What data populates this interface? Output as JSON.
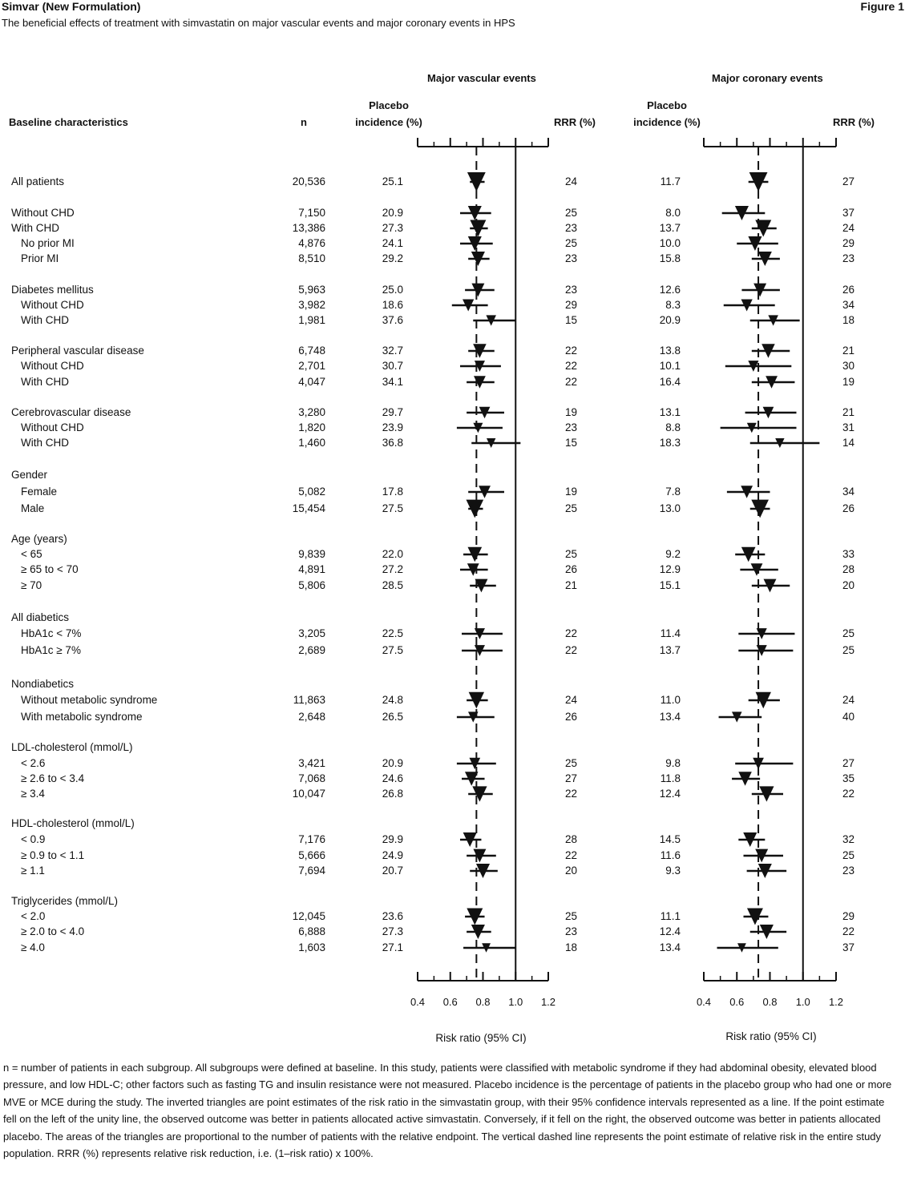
{
  "header": {
    "title": "Simvar (New Formulation)",
    "figure": "Figure 1",
    "subtitle": "The beneficial effects of treatment with simvastatin on major vascular events and major coronary events in HPS"
  },
  "columns": {
    "baseline": "Baseline characteristics",
    "n": "n",
    "placebo_line1": "Placebo",
    "placebo_line2": "incidence (%)",
    "rrr": "RRR (%)",
    "mve_title": "Major vascular events",
    "mce_title": "Major coronary events",
    "xlabel": "Risk ratio (95% CI)"
  },
  "chart_data": {
    "type": "forest",
    "x_ticks": [
      "0.4",
      "0.6",
      "0.8",
      "1.0",
      "1.2"
    ],
    "xlim": [
      0.4,
      1.2
    ],
    "reference_line": 1.0,
    "dashed_line": {
      "mve": 0.76,
      "mce": 0.73
    },
    "rows": [
      {
        "label": "All patients",
        "indent": 0,
        "n": "20,536",
        "mve": {
          "inc": "25.1",
          "rr": 0.76,
          "lo": 0.72,
          "hi": 0.81,
          "rrr": "24",
          "size": 3
        },
        "mce": {
          "inc": "11.7",
          "rr": 0.73,
          "lo": 0.67,
          "hi": 0.79,
          "rrr": "27",
          "size": 3
        }
      },
      {
        "label": "Without CHD",
        "indent": 0,
        "n": "7,150",
        "mve": {
          "inc": "20.9",
          "rr": 0.75,
          "lo": 0.66,
          "hi": 0.85,
          "rrr": "25",
          "size": 2
        },
        "mce": {
          "inc": "8.0",
          "rr": 0.63,
          "lo": 0.51,
          "hi": 0.77,
          "rrr": "37",
          "size": 2
        }
      },
      {
        "label": "With CHD",
        "indent": 0,
        "n": "13,386",
        "mve": {
          "inc": "27.3",
          "rr": 0.77,
          "lo": 0.72,
          "hi": 0.83,
          "rrr": "23",
          "size": 2.5
        },
        "mce": {
          "inc": "13.7",
          "rr": 0.76,
          "lo": 0.69,
          "hi": 0.84,
          "rrr": "24",
          "size": 2.5
        }
      },
      {
        "label": "No prior MI",
        "indent": 1,
        "n": "4,876",
        "mve": {
          "inc": "24.1",
          "rr": 0.75,
          "lo": 0.66,
          "hi": 0.86,
          "rrr": "25",
          "size": 2
        },
        "mce": {
          "inc": "10.0",
          "rr": 0.71,
          "lo": 0.6,
          "hi": 0.85,
          "rrr": "29",
          "size": 2
        }
      },
      {
        "label": "Prior MI",
        "indent": 1,
        "n": "8,510",
        "mve": {
          "inc": "29.2",
          "rr": 0.77,
          "lo": 0.71,
          "hi": 0.84,
          "rrr": "23",
          "size": 2
        },
        "mce": {
          "inc": "15.8",
          "rr": 0.77,
          "lo": 0.69,
          "hi": 0.86,
          "rrr": "23",
          "size": 2
        }
      },
      {
        "label": "Diabetes mellitus",
        "indent": 0,
        "n": "5,963",
        "mve": {
          "inc": "25.0",
          "rr": 0.77,
          "lo": 0.69,
          "hi": 0.87,
          "rrr": "23",
          "size": 1.8
        },
        "mce": {
          "inc": "12.6",
          "rr": 0.74,
          "lo": 0.63,
          "hi": 0.86,
          "rrr": "26",
          "size": 1.8
        }
      },
      {
        "label": "Without CHD",
        "indent": 1,
        "n": "3,982",
        "mve": {
          "inc": "18.6",
          "rr": 0.71,
          "lo": 0.61,
          "hi": 0.83,
          "rrr": "29",
          "size": 1.5
        },
        "mce": {
          "inc": "8.3",
          "rr": 0.66,
          "lo": 0.52,
          "hi": 0.83,
          "rrr": "34",
          "size": 1.5
        }
      },
      {
        "label": "With CHD",
        "indent": 1,
        "n": "1,981",
        "mve": {
          "inc": "37.6",
          "rr": 0.85,
          "lo": 0.74,
          "hi": 1.0,
          "rrr": "15",
          "size": 1.2
        },
        "mce": {
          "inc": "20.9",
          "rr": 0.82,
          "lo": 0.68,
          "hi": 0.98,
          "rrr": "18",
          "size": 1.2
        }
      },
      {
        "label": "Peripheral vascular disease",
        "indent": 0,
        "n": "6,748",
        "mve": {
          "inc": "32.7",
          "rr": 0.78,
          "lo": 0.71,
          "hi": 0.87,
          "rrr": "22",
          "size": 1.9
        },
        "mce": {
          "inc": "13.8",
          "rr": 0.79,
          "lo": 0.69,
          "hi": 0.92,
          "rrr": "21",
          "size": 1.9
        }
      },
      {
        "label": "Without CHD",
        "indent": 1,
        "n": "2,701",
        "mve": {
          "inc": "30.7",
          "rr": 0.78,
          "lo": 0.66,
          "hi": 0.91,
          "rrr": "22",
          "size": 1.3
        },
        "mce": {
          "inc": "10.1",
          "rr": 0.7,
          "lo": 0.53,
          "hi": 0.93,
          "rrr": "30",
          "size": 1.3
        }
      },
      {
        "label": "With CHD",
        "indent": 1,
        "n": "4,047",
        "mve": {
          "inc": "34.1",
          "rr": 0.78,
          "lo": 0.7,
          "hi": 0.87,
          "rrr": "22",
          "size": 1.6
        },
        "mce": {
          "inc": "16.4",
          "rr": 0.81,
          "lo": 0.69,
          "hi": 0.95,
          "rrr": "19",
          "size": 1.6
        }
      },
      {
        "label": "Cerebrovascular disease",
        "indent": 0,
        "n": "3,280",
        "mve": {
          "inc": "29.7",
          "rr": 0.81,
          "lo": 0.7,
          "hi": 0.93,
          "rrr": "19",
          "size": 1.4
        },
        "mce": {
          "inc": "13.1",
          "rr": 0.79,
          "lo": 0.65,
          "hi": 0.96,
          "rrr": "21",
          "size": 1.4
        }
      },
      {
        "label": "Without CHD",
        "indent": 1,
        "n": "1,820",
        "mve": {
          "inc": "23.9",
          "rr": 0.77,
          "lo": 0.64,
          "hi": 0.92,
          "rrr": "23",
          "size": 1.1
        },
        "mce": {
          "inc": "8.8",
          "rr": 0.69,
          "lo": 0.5,
          "hi": 0.96,
          "rrr": "31",
          "size": 1.1
        }
      },
      {
        "label": "With CHD",
        "indent": 1,
        "n": "1,460",
        "mve": {
          "inc": "36.8",
          "rr": 0.85,
          "lo": 0.73,
          "hi": 1.03,
          "rrr": "15",
          "size": 1.0
        },
        "mce": {
          "inc": "18.3",
          "rr": 0.86,
          "lo": 0.68,
          "hi": 1.1,
          "rrr": "14",
          "size": 1.0
        }
      },
      {
        "label": "Gender",
        "indent": 0,
        "header": true
      },
      {
        "label": "Female",
        "indent": 1,
        "n": "5,082",
        "mve": {
          "inc": "17.8",
          "rr": 0.81,
          "lo": 0.71,
          "hi": 0.93,
          "rrr": "19",
          "size": 1.6
        },
        "mce": {
          "inc": "7.8",
          "rr": 0.66,
          "lo": 0.54,
          "hi": 0.8,
          "rrr": "34",
          "size": 1.6
        }
      },
      {
        "label": "Male",
        "indent": 1,
        "n": "15,454",
        "mve": {
          "inc": "27.5",
          "rr": 0.75,
          "lo": 0.71,
          "hi": 0.8,
          "rrr": "25",
          "size": 2.8
        },
        "mce": {
          "inc": "13.0",
          "rr": 0.74,
          "lo": 0.68,
          "hi": 0.8,
          "rrr": "26",
          "size": 2.8
        }
      },
      {
        "label": "Age (years)",
        "indent": 0,
        "header": true
      },
      {
        "label": "< 65",
        "indent": 1,
        "n": "9,839",
        "mve": {
          "inc": "22.0",
          "rr": 0.75,
          "lo": 0.68,
          "hi": 0.83,
          "rrr": "25",
          "size": 2.1
        },
        "mce": {
          "inc": "9.2",
          "rr": 0.67,
          "lo": 0.59,
          "hi": 0.77,
          "rrr": "33",
          "size": 2.1
        }
      },
      {
        "label": "≥ 65 to < 70",
        "indent": 1,
        "n": "4,891",
        "mve": {
          "inc": "27.2",
          "rr": 0.74,
          "lo": 0.66,
          "hi": 0.83,
          "rrr": "26",
          "size": 1.6
        },
        "mce": {
          "inc": "12.9",
          "rr": 0.72,
          "lo": 0.62,
          "hi": 0.85,
          "rrr": "28",
          "size": 1.6
        }
      },
      {
        "label": "≥ 70",
        "indent": 1,
        "n": "5,806",
        "mve": {
          "inc": "28.5",
          "rr": 0.79,
          "lo": 0.72,
          "hi": 0.88,
          "rrr": "21",
          "size": 1.8
        },
        "mce": {
          "inc": "15.1",
          "rr": 0.8,
          "lo": 0.69,
          "hi": 0.92,
          "rrr": "20",
          "size": 1.8
        }
      },
      {
        "label": "All diabetics",
        "indent": 0,
        "header": true
      },
      {
        "label": "HbA1c < 7%",
        "indent": 1,
        "n": "3,205",
        "mve": {
          "inc": "22.5",
          "rr": 0.78,
          "lo": 0.67,
          "hi": 0.92,
          "rrr": "22",
          "size": 1.3
        },
        "mce": {
          "inc": "11.4",
          "rr": 0.75,
          "lo": 0.61,
          "hi": 0.95,
          "rrr": "25",
          "size": 1.3
        }
      },
      {
        "label": "HbA1c ≥ 7%",
        "indent": 1,
        "n": "2,689",
        "mve": {
          "inc": "27.5",
          "rr": 0.78,
          "lo": 0.67,
          "hi": 0.92,
          "rrr": "22",
          "size": 1.3
        },
        "mce": {
          "inc": "13.7",
          "rr": 0.75,
          "lo": 0.61,
          "hi": 0.94,
          "rrr": "25",
          "size": 1.3
        }
      },
      {
        "label": "Nondiabetics",
        "indent": 0,
        "header": true
      },
      {
        "label": "Without metabolic syndrome",
        "indent": 1,
        "n": "11,863",
        "mve": {
          "inc": "24.8",
          "rr": 0.76,
          "lo": 0.7,
          "hi": 0.83,
          "rrr": "24",
          "size": 2.4
        },
        "mce": {
          "inc": "11.0",
          "rr": 0.76,
          "lo": 0.67,
          "hi": 0.86,
          "rrr": "24",
          "size": 2.4
        }
      },
      {
        "label": "With metabolic syndrome",
        "indent": 1,
        "n": "2,648",
        "mve": {
          "inc": "26.5",
          "rr": 0.74,
          "lo": 0.64,
          "hi": 0.87,
          "rrr": "26",
          "size": 1.2
        },
        "mce": {
          "inc": "13.4",
          "rr": 0.6,
          "lo": 0.49,
          "hi": 0.75,
          "rrr": "40",
          "size": 1.2
        }
      },
      {
        "label": "LDL-cholesterol (mmol/L)",
        "indent": 0,
        "header": true
      },
      {
        "label": "< 2.6",
        "indent": 1,
        "n": "3,421",
        "mve": {
          "inc": "20.9",
          "rr": 0.75,
          "lo": 0.64,
          "hi": 0.88,
          "rrr": "25",
          "size": 1.4
        },
        "mce": {
          "inc": "9.8",
          "rr": 0.73,
          "lo": 0.59,
          "hi": 0.94,
          "rrr": "27",
          "size": 1.4
        }
      },
      {
        "label": "≥ 2.6 to < 3.4",
        "indent": 1,
        "n": "7,068",
        "mve": {
          "inc": "24.6",
          "rr": 0.73,
          "lo": 0.67,
          "hi": 0.81,
          "rrr": "27",
          "size": 1.9
        },
        "mce": {
          "inc": "11.8",
          "rr": 0.65,
          "lo": 0.57,
          "hi": 0.74,
          "rrr": "35",
          "size": 1.9
        }
      },
      {
        "label": "≥ 3.4",
        "indent": 1,
        "n": "10,047",
        "mve": {
          "inc": "26.8",
          "rr": 0.78,
          "lo": 0.71,
          "hi": 0.86,
          "rrr": "22",
          "size": 2.2
        },
        "mce": {
          "inc": "12.4",
          "rr": 0.78,
          "lo": 0.69,
          "hi": 0.88,
          "rrr": "22",
          "size": 2.2
        }
      },
      {
        "label": "HDL-cholesterol (mmol/L)",
        "indent": 0,
        "header": true
      },
      {
        "label": "< 0.9",
        "indent": 1,
        "n": "7,176",
        "mve": {
          "inc": "29.9",
          "rr": 0.72,
          "lo": 0.66,
          "hi": 0.79,
          "rrr": "28",
          "size": 2.0
        },
        "mce": {
          "inc": "14.5",
          "rr": 0.68,
          "lo": 0.61,
          "hi": 0.77,
          "rrr": "32",
          "size": 2.0
        }
      },
      {
        "label": "≥ 0.9 to < 1.1",
        "indent": 1,
        "n": "5,666",
        "mve": {
          "inc": "24.9",
          "rr": 0.78,
          "lo": 0.7,
          "hi": 0.88,
          "rrr": "22",
          "size": 1.8
        },
        "mce": {
          "inc": "11.6",
          "rr": 0.75,
          "lo": 0.64,
          "hi": 0.88,
          "rrr": "25",
          "size": 1.8
        }
      },
      {
        "label": "≥ 1.1",
        "indent": 1,
        "n": "7,694",
        "mve": {
          "inc": "20.7",
          "rr": 0.8,
          "lo": 0.72,
          "hi": 0.89,
          "rrr": "20",
          "size": 2.0
        },
        "mce": {
          "inc": "9.3",
          "rr": 0.77,
          "lo": 0.66,
          "hi": 0.9,
          "rrr": "23",
          "size": 2.0
        }
      },
      {
        "label": "Triglycerides (mmol/L)",
        "indent": 0,
        "header": true
      },
      {
        "label": "< 2.0",
        "indent": 1,
        "n": "12,045",
        "mve": {
          "inc": "23.6",
          "rr": 0.75,
          "lo": 0.69,
          "hi": 0.81,
          "rrr": "25",
          "size": 2.5
        },
        "mce": {
          "inc": "11.1",
          "rr": 0.71,
          "lo": 0.64,
          "hi": 0.79,
          "rrr": "29",
          "size": 2.5
        }
      },
      {
        "label": "≥ 2.0 to < 4.0",
        "indent": 1,
        "n": "6,888",
        "mve": {
          "inc": "27.3",
          "rr": 0.77,
          "lo": 0.7,
          "hi": 0.85,
          "rrr": "23",
          "size": 2.0
        },
        "mce": {
          "inc": "12.4",
          "rr": 0.78,
          "lo": 0.68,
          "hi": 0.9,
          "rrr": "22",
          "size": 2.0
        }
      },
      {
        "label": "≥ 4.0",
        "indent": 1,
        "n": "1,603",
        "mve": {
          "inc": "27.1",
          "rr": 0.82,
          "lo": 0.68,
          "hi": 1.0,
          "rrr": "18",
          "size": 0.9
        },
        "mce": {
          "inc": "13.4",
          "rr": 0.63,
          "lo": 0.48,
          "hi": 0.85,
          "rrr": "37",
          "size": 0.9
        }
      }
    ]
  },
  "footnote": "n = number of patients in each subgroup.  All subgroups were defined at baseline. In this study, patients were classified with metabolic syndrome if they had abdominal obesity, elevated blood pressure, and low HDL-C; other factors such as fasting TG and insulin resistance were not measured.  Placebo incidence is the percentage of patients in the placebo group who had one or more MVE or MCE during the study.  The inverted triangles are point estimates of the risk ratio in the simvastatin group, with their 95% confidence intervals represented as a line.  If the point estimate fell on the left of the unity line, the observed outcome was better in patients allocated active simvastatin.  Conversely, if it fell on the right, the observed outcome was better in patients allocated placebo.  The areas of the triangles are proportional to the number of patients with the relative endpoint.  The vertical dashed line represents the point estimate of relative risk in the entire study population.  RRR (%) represents relative risk reduction, i.e. (1–risk ratio) x 100%."
}
